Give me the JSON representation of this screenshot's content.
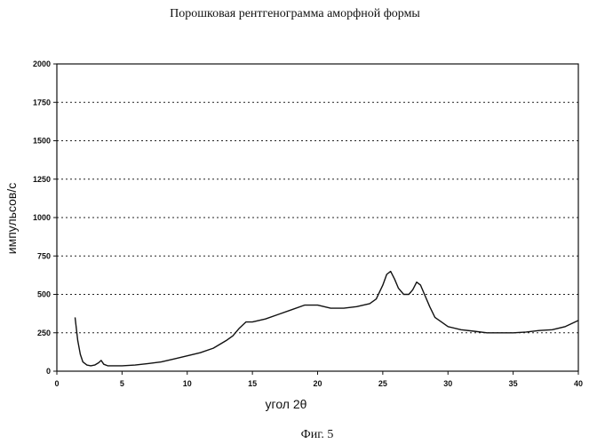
{
  "chart_data": {
    "type": "line",
    "title": "Порошковая рентгенограмма аморфной формы",
    "xlabel": "угол 2θ",
    "ylabel": "импульсов/с",
    "caption": "Фиг. 5",
    "xlim": [
      0,
      40
    ],
    "ylim": [
      0,
      2000
    ],
    "xticks": [
      0,
      5,
      10,
      15,
      20,
      25,
      30,
      35,
      40
    ],
    "yticks": [
      0,
      250,
      500,
      750,
      1000,
      1250,
      1500,
      1750,
      2000
    ],
    "grid": "horizontal dotted",
    "series": [
      {
        "x": [
          1.4,
          1.6,
          1.8,
          2.0,
          2.3,
          2.6,
          2.9,
          3.2,
          3.4,
          3.6,
          3.9,
          4.3,
          5.0,
          6.0,
          7.0,
          8.0,
          9.0,
          10.0,
          11.0,
          12.0,
          13.0,
          13.5,
          14.0,
          14.5,
          15.0,
          16.0,
          17.0,
          18.0,
          19.0,
          20.0,
          21.0,
          22.0,
          23.0,
          24.0,
          24.5,
          25.0,
          25.3,
          25.6,
          25.9,
          26.2,
          26.6,
          27.0,
          27.3,
          27.6,
          27.9,
          28.2,
          28.6,
          29.0,
          29.5,
          30.0,
          31.0,
          32.0,
          33.0,
          34.0,
          35.0,
          36.0,
          37.0,
          38.0,
          39.0,
          40.0
        ],
        "y": [
          350,
          200,
          110,
          60,
          40,
          35,
          40,
          55,
          70,
          45,
          35,
          35,
          35,
          40,
          50,
          60,
          80,
          100,
          120,
          150,
          200,
          230,
          280,
          320,
          320,
          340,
          370,
          400,
          430,
          430,
          410,
          410,
          420,
          440,
          470,
          560,
          630,
          650,
          600,
          540,
          500,
          500,
          530,
          580,
          560,
          500,
          420,
          350,
          320,
          290,
          270,
          260,
          250,
          250,
          250,
          255,
          265,
          270,
          290,
          330
        ]
      }
    ]
  }
}
